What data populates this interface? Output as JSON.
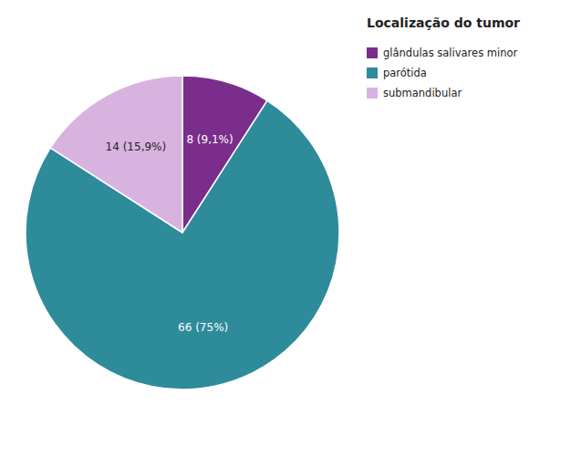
{
  "chart_data": {
    "type": "pie",
    "title": "Localização do tumor",
    "categories": [
      "glândulas salivares minor",
      "parótida",
      "submandibular"
    ],
    "values": [
      8,
      66,
      14
    ],
    "value_labels": [
      "8 (9,1%)",
      "66 (75%)",
      "14 (15,9%)"
    ],
    "colors": [
      "#7B2D8B",
      "#2E8B9A",
      "#D9B3E0"
    ],
    "data_labels": true,
    "legend": "upper right"
  }
}
